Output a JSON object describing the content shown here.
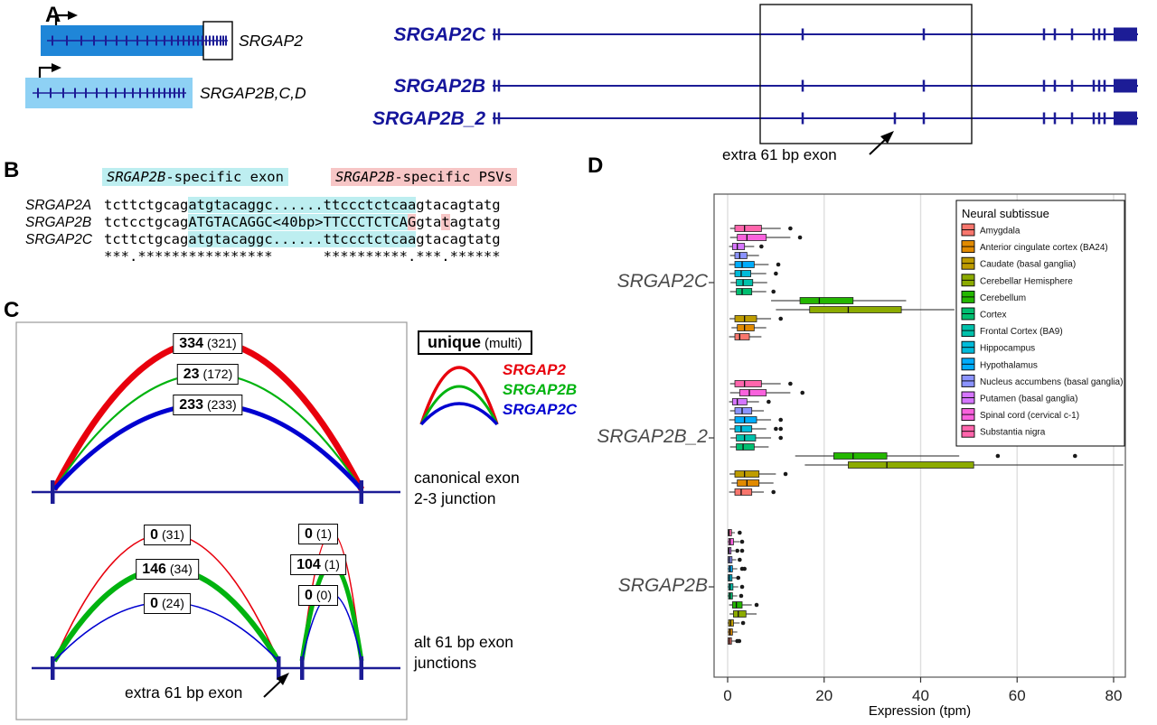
{
  "colors": {
    "navy": "#1c1c96",
    "gene_blue_dark": "#1f86d8",
    "gene_blue_light": "#8ed1f4",
    "srgap2_red": "#e8000d",
    "srgap2b_green": "#00b30f",
    "srgap2c_blue": "#0000d0",
    "cyan_highlight": "#bdeef0",
    "pink_highlight": "#f7c6c6"
  },
  "panelA": {
    "label": "A",
    "ancestral_gene": "SRGAP2",
    "duplicate_genes": "SRGAP2B,C,D",
    "transcripts": [
      "SRGAP2C",
      "SRGAP2B",
      "SRGAP2B_2"
    ],
    "annotation": "extra 61 bp exon"
  },
  "panelB": {
    "label": "B",
    "header_exon": {
      "gene": "SRGAP2B",
      "rest": "-specific exon"
    },
    "header_psv": {
      "gene": "SRGAP2B",
      "rest": "-specific PSVs"
    },
    "rows": [
      {
        "name": "SRGAP2A",
        "segments": [
          {
            "t": "tcttctgcag"
          },
          {
            "t": "atgtacaggc......ttccctctcaa",
            "h": "cyan"
          },
          {
            "t": "gtacagtatg"
          }
        ]
      },
      {
        "name": "SRGAP2B",
        "segments": [
          {
            "t": "tctcctgcag"
          },
          {
            "t": "ATGTACAGGC<40bp>TTCCCTCTCA",
            "h": "cyan"
          },
          {
            "t": "G",
            "h": "pink"
          },
          {
            "t": "gta"
          },
          {
            "t": "t",
            "h": "pink"
          },
          {
            "t": "agtatg"
          }
        ]
      },
      {
        "name": "SRGAP2C",
        "segments": [
          {
            "t": "tcttctgcag"
          },
          {
            "t": "atgtacaggc......ttccctctcaa",
            "h": "cyan"
          },
          {
            "t": "gtacagtatg"
          }
        ]
      },
      {
        "name": "",
        "segments": [
          {
            "t": "***.****************      **********.***.******"
          }
        ]
      }
    ]
  },
  "panelC": {
    "label": "C",
    "legend": {
      "unique": "unique",
      "multi": "(multi)",
      "entries": [
        {
          "name": "SRGAP2",
          "color": "#e8000d"
        },
        {
          "name": "SRGAP2B",
          "color": "#00b30f"
        },
        {
          "name": "SRGAP2C",
          "color": "#0000d0"
        }
      ]
    },
    "canonical": {
      "caption": [
        "canonical exon",
        "2-3 junction"
      ],
      "arcs": [
        {
          "unique": "334",
          "multi": "(321)",
          "color": "#e8000d"
        },
        {
          "unique": "23",
          "multi": "(172)",
          "color": "#00b30f"
        },
        {
          "unique": "233",
          "multi": "(233)",
          "color": "#0000d0"
        }
      ]
    },
    "alt": {
      "caption": [
        "alt 61 bp exon",
        "junctions"
      ],
      "annotation": "extra 61 bp exon",
      "left_arcs": [
        {
          "unique": "0",
          "multi": "(31)",
          "color": "#e8000d"
        },
        {
          "unique": "146",
          "multi": "(34)",
          "color": "#00b30f"
        },
        {
          "unique": "0",
          "multi": "(24)",
          "color": "#0000d0"
        }
      ],
      "right_arcs": [
        {
          "unique": "0",
          "multi": "(1)",
          "color": "#e8000d"
        },
        {
          "unique": "104",
          "multi": "(1)",
          "color": "#00b30f"
        },
        {
          "unique": "0",
          "multi": "(0)",
          "color": "#0000d0"
        }
      ]
    }
  },
  "panelD": {
    "label": "D"
  },
  "chart_data": {
    "type": "boxplot",
    "orientation": "horizontal",
    "xlabel": "Expression (tpm)",
    "xticks": [
      0,
      20,
      40,
      60,
      80
    ],
    "xlim": [
      -2,
      82
    ],
    "grid": "vertical major gridlines, white panel, thin dark border",
    "groups": [
      "SRGAP2C",
      "SRGAP2B_2",
      "SRGAP2B"
    ],
    "row_order_within_group": "reverse of tissue legend order, top to bottom",
    "legend_title": "Neural subtissue",
    "legend_position": "top-right inside panel",
    "tissues": [
      {
        "name": "Amygdala",
        "color": "#F8766D"
      },
      {
        "name": "Anterior cingulate cortex (BA24)",
        "color": "#E18A00"
      },
      {
        "name": "Caudate (basal ganglia)",
        "color": "#BE9C00"
      },
      {
        "name": "Cerebellar Hemisphere",
        "color": "#8CAB00"
      },
      {
        "name": "Cerebellum",
        "color": "#24B700"
      },
      {
        "name": "Cortex",
        "color": "#00BE70"
      },
      {
        "name": "Frontal Cortex (BA9)",
        "color": "#00C1AB"
      },
      {
        "name": "Hippocampus",
        "color": "#00BBDA"
      },
      {
        "name": "Hypothalamus",
        "color": "#00ACFC"
      },
      {
        "name": "Nucleus accumbens (basal ganglia)",
        "color": "#8B93FF"
      },
      {
        "name": "Putamen (basal ganglia)",
        "color": "#D575FE"
      },
      {
        "name": "Spinal cord (cervical c-1)",
        "color": "#F962DD"
      },
      {
        "name": "Substantia nigra",
        "color": "#FF65AC"
      }
    ],
    "box_format": [
      "whislo",
      "q1",
      "med",
      "q3",
      "whishi",
      "outliers"
    ],
    "series": {
      "SRGAP2C": {
        "Amygdala": [
          0.3,
          1.5,
          2.5,
          4.5,
          7,
          []
        ],
        "Anterior cingulate cortex (BA24)": [
          0.8,
          2,
          3.5,
          5.5,
          8,
          []
        ],
        "Caudate (basal ganglia)": [
          0.4,
          1.5,
          3.5,
          6,
          9,
          [
            11
          ]
        ],
        "Cerebellar Hemisphere": [
          10,
          17,
          25,
          36,
          47,
          [
            55
          ]
        ],
        "Cerebellum": [
          9,
          15,
          19,
          26,
          37,
          []
        ],
        "Cortex": [
          0.5,
          1.8,
          3,
          5,
          8,
          [
            9.5
          ]
        ],
        "Frontal Cortex (BA9)": [
          0.6,
          1.8,
          3.2,
          5.2,
          8.2,
          []
        ],
        "Hippocampus": [
          0.4,
          1.5,
          2.8,
          4.8,
          8,
          [
            10
          ]
        ],
        "Hypothalamus": [
          0.3,
          1.5,
          3,
          5.5,
          8.5,
          [
            10.5
          ]
        ],
        "Nucleus accumbens (basal ganglia)": [
          0.5,
          1.5,
          2.5,
          4,
          6.5,
          []
        ],
        "Putamen (basal ganglia)": [
          0.3,
          1,
          2,
          3.5,
          5.5,
          [
            7
          ]
        ],
        "Spinal cord (cervical c-1)": [
          0.5,
          2,
          4,
          8,
          13,
          [
            15
          ]
        ],
        "Substantia nigra": [
          0.5,
          1.5,
          3.5,
          7,
          11,
          [
            13
          ]
        ]
      },
      "SRGAP2B_2": {
        "Amygdala": [
          0.3,
          1.5,
          2.8,
          5,
          7.5,
          [
            9.5
          ]
        ],
        "Anterior cingulate cortex (BA24)": [
          0.8,
          2,
          4,
          6.5,
          9.5,
          []
        ],
        "Caudate (basal ganglia)": [
          0.4,
          1.5,
          3.5,
          6.5,
          10,
          [
            12
          ]
        ],
        "Cerebellar Hemisphere": [
          16,
          25,
          33,
          51,
          82,
          []
        ],
        "Cerebellum": [
          14,
          22,
          26,
          33,
          48,
          [
            56,
            72
          ]
        ],
        "Cortex": [
          0.5,
          1.8,
          3.2,
          5.5,
          8.5,
          []
        ],
        "Frontal Cortex (BA9)": [
          0.6,
          1.8,
          3.5,
          5.8,
          9,
          [
            11
          ]
        ],
        "Hippocampus": [
          0.4,
          1.5,
          2.8,
          5,
          8,
          [
            10,
            11
          ]
        ],
        "Hypothalamus": [
          0.3,
          1.5,
          3.5,
          6,
          9,
          [
            11
          ]
        ],
        "Nucleus accumbens (basal ganglia)": [
          0.5,
          1.5,
          3,
          5,
          7.5,
          []
        ],
        "Putamen (basal ganglia)": [
          0.3,
          1,
          2,
          4,
          6.5,
          [
            8.5
          ]
        ],
        "Spinal cord (cervical c-1)": [
          0.5,
          2.5,
          4.5,
          8,
          13,
          [
            15.5
          ]
        ],
        "Substantia nigra": [
          0.5,
          1.5,
          3.5,
          7,
          11,
          [
            13
          ]
        ]
      },
      "SRGAP2B": {
        "Amygdala": [
          0,
          0.1,
          0.4,
          0.8,
          1.6,
          [
            2,
            2.4
          ]
        ],
        "Anterior cingulate cortex (BA24)": [
          0,
          0.2,
          0.5,
          1,
          2,
          []
        ],
        "Caudate (basal ganglia)": [
          0,
          0.2,
          0.6,
          1.2,
          2.5,
          [
            3.2
          ]
        ],
        "Cerebellar Hemisphere": [
          0.4,
          1.2,
          2.2,
          3.8,
          6,
          []
        ],
        "Cerebellum": [
          0.3,
          1,
          1.8,
          3,
          5,
          [
            6
          ]
        ],
        "Cortex": [
          0,
          0.2,
          0.5,
          1,
          2,
          [
            2.8
          ]
        ],
        "Frontal Cortex (BA9)": [
          0,
          0.2,
          0.5,
          1.1,
          2.2,
          [
            3
          ]
        ],
        "Hippocampus": [
          0,
          0.1,
          0.4,
          0.9,
          1.8,
          [
            2.2
          ]
        ],
        "Hypothalamus": [
          0,
          0.2,
          0.5,
          1,
          2,
          [
            3,
            3.5
          ]
        ],
        "Nucleus accumbens (basal ganglia)": [
          0,
          0.1,
          0.4,
          0.9,
          1.8,
          [
            2.5
          ]
        ],
        "Putamen (basal ganglia)": [
          0,
          0.1,
          0.3,
          0.7,
          1.5,
          [
            2,
            3
          ]
        ],
        "Spinal cord (cervical c-1)": [
          0,
          0.2,
          0.5,
          1.2,
          2.5,
          [
            3
          ]
        ],
        "Substantia nigra": [
          0,
          0.1,
          0.3,
          0.8,
          1.5,
          [
            2.5
          ]
        ]
      }
    }
  }
}
